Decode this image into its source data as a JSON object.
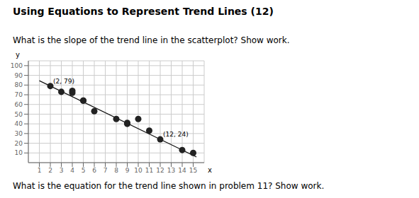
{
  "chart_data": {
    "type": "scatter",
    "title": "Using Equations to Represent Trend Lines (12)",
    "subtitle": "What is the slope of the trend line in the scatterplot?  Show work.",
    "caption": "What is the equation for the trend line shown in problem 11?  Show work.",
    "x_label": "x",
    "y_label": "y",
    "x": [
      2,
      3,
      4,
      4,
      5,
      5,
      6,
      8,
      9,
      9,
      10,
      11,
      12,
      14,
      15
    ],
    "values": [
      79,
      73,
      72,
      74,
      64,
      64,
      53,
      45,
      40,
      41,
      45,
      33,
      24,
      13,
      10
    ],
    "color": "#222222",
    "trend_line": {
      "x": [
        1.0,
        15.3
      ],
      "values": [
        84.5,
        5.85
      ],
      "color": "#111111"
    },
    "annotations": [
      {
        "text": "(2, 79)",
        "x": 2,
        "y": 79
      },
      {
        "text": "(12, 24)",
        "x": 12,
        "y": 24
      }
    ],
    "xlim": [
      0,
      16
    ],
    "ylim": [
      0,
      105
    ],
    "xticks": [
      1,
      2,
      3,
      4,
      5,
      6,
      7,
      8,
      9,
      10,
      11,
      12,
      13,
      14,
      15
    ],
    "yticks": [
      10,
      20,
      30,
      40,
      50,
      60,
      70,
      80,
      90,
      100
    ],
    "grid": true
  }
}
